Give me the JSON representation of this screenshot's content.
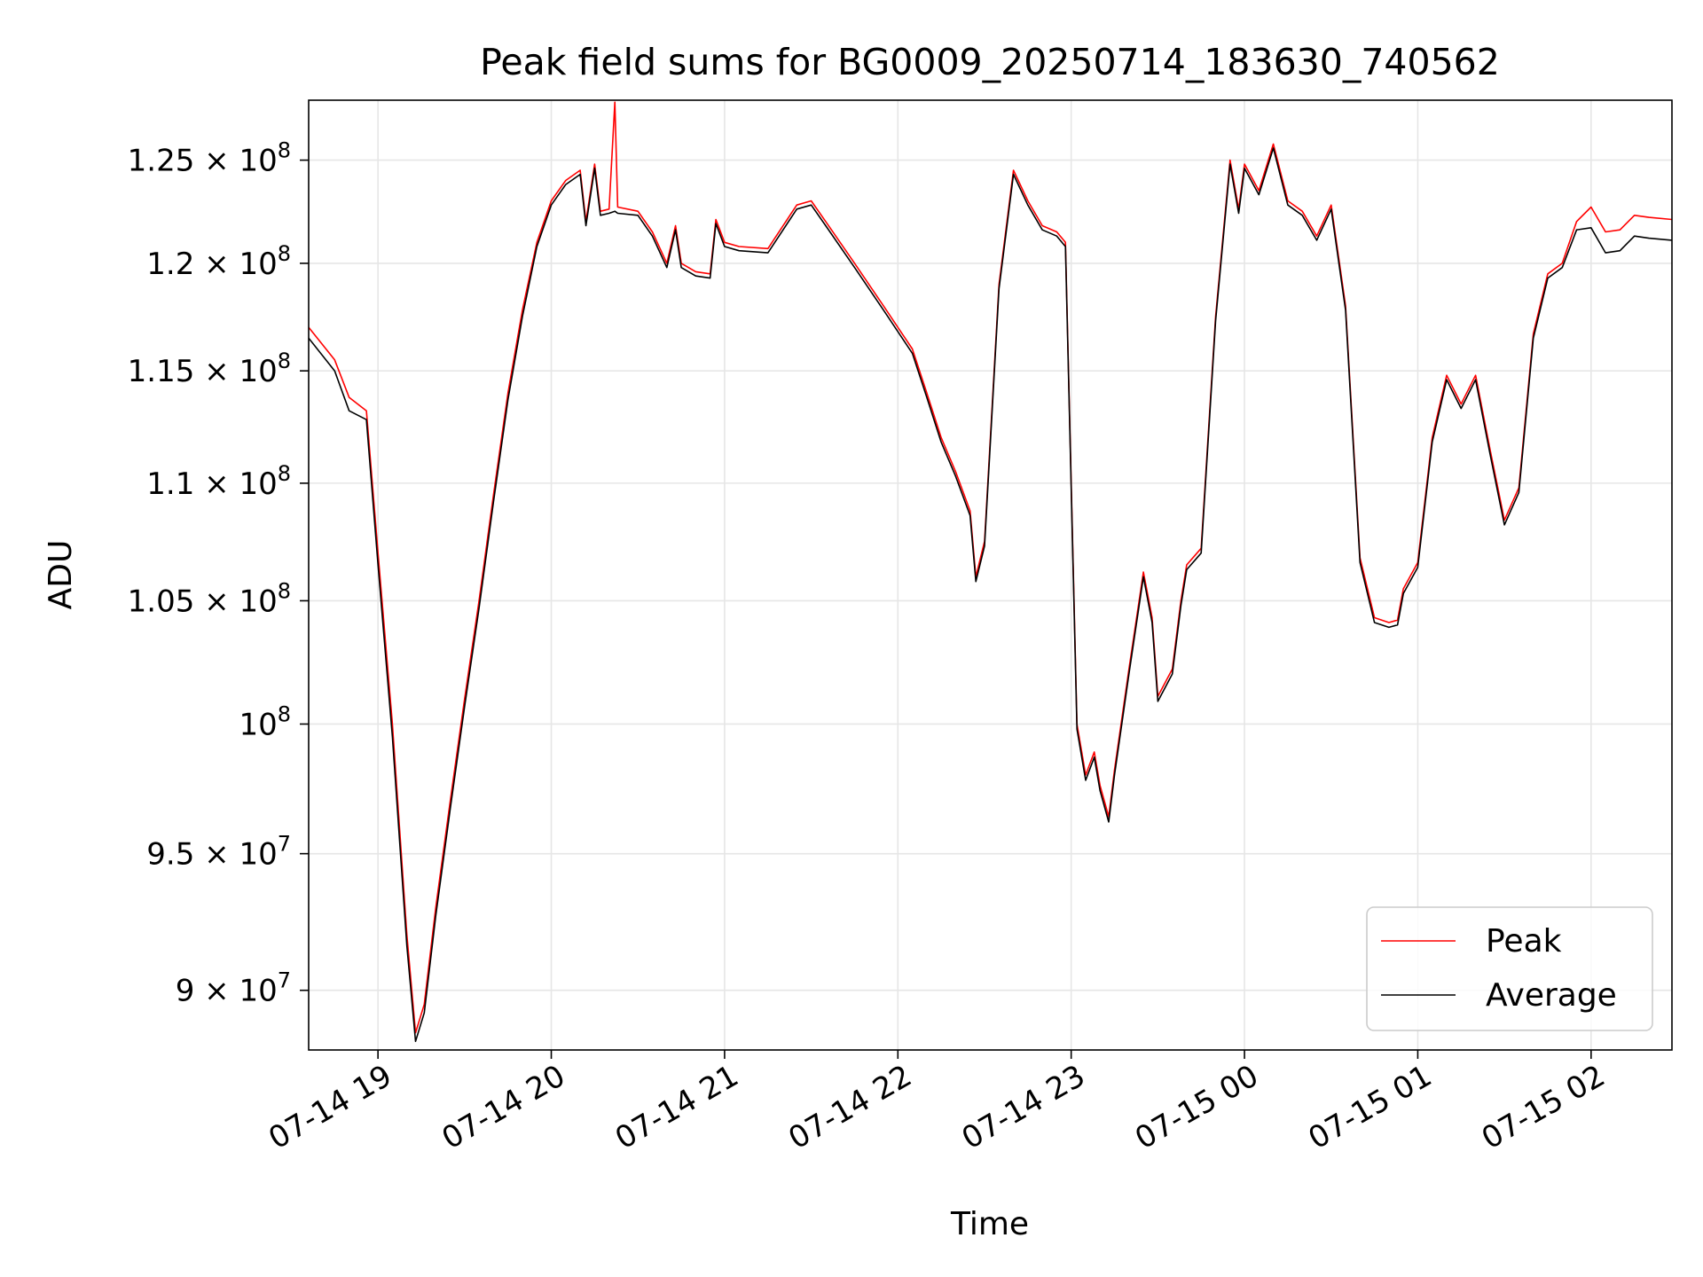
{
  "chart_data": {
    "type": "line",
    "title": "Peak field sums for BG0009_20250714_183630_740562",
    "xlabel": "Time",
    "ylabel": "ADU",
    "yscale": "log",
    "grid": true,
    "legend_position": "lower right",
    "ylim": [
      87900000,
      128000000
    ],
    "xlim": [
      "2025-07-14 18:36",
      "2025-07-15 02:28"
    ],
    "x_ticks": [
      {
        "value": "2025-07-14 19:00",
        "label": "07-14 19"
      },
      {
        "value": "2025-07-14 20:00",
        "label": "07-14 20"
      },
      {
        "value": "2025-07-14 21:00",
        "label": "07-14 21"
      },
      {
        "value": "2025-07-14 22:00",
        "label": "07-14 22"
      },
      {
        "value": "2025-07-14 23:00",
        "label": "07-14 23"
      },
      {
        "value": "2025-07-15 00:00",
        "label": "07-15 00"
      },
      {
        "value": "2025-07-15 01:00",
        "label": "07-15 01"
      },
      {
        "value": "2025-07-15 02:00",
        "label": "07-15 02"
      }
    ],
    "y_ticks": [
      {
        "value": 90000000,
        "mantissa": "9",
        "exponent": "7"
      },
      {
        "value": 95000000,
        "mantissa": "9.5",
        "exponent": "7"
      },
      {
        "value": 100000000,
        "mantissa": "",
        "exponent": "8"
      },
      {
        "value": 105000000,
        "mantissa": "1.05",
        "exponent": "8"
      },
      {
        "value": 110000000,
        "mantissa": "1.1",
        "exponent": "8"
      },
      {
        "value": 115000000,
        "mantissa": "1.15",
        "exponent": "8"
      },
      {
        "value": 120000000,
        "mantissa": "1.2",
        "exponent": "8"
      },
      {
        "value": 125000000,
        "mantissa": "1.25",
        "exponent": "8"
      }
    ],
    "x": [
      "2025-07-14 18:36",
      "2025-07-14 18:45",
      "2025-07-14 18:50",
      "2025-07-14 18:56",
      "2025-07-14 19:00",
      "2025-07-14 19:05",
      "2025-07-14 19:10",
      "2025-07-14 19:13",
      "2025-07-14 19:16",
      "2025-07-14 19:20",
      "2025-07-14 19:25",
      "2025-07-14 19:30",
      "2025-07-14 19:35",
      "2025-07-14 19:40",
      "2025-07-14 19:45",
      "2025-07-14 19:50",
      "2025-07-14 19:55",
      "2025-07-14 20:00",
      "2025-07-14 20:05",
      "2025-07-14 20:10",
      "2025-07-14 20:12",
      "2025-07-14 20:15",
      "2025-07-14 20:17",
      "2025-07-14 20:20",
      "2025-07-14 20:22",
      "2025-07-14 20:23",
      "2025-07-14 20:30",
      "2025-07-14 20:35",
      "2025-07-14 20:40",
      "2025-07-14 20:43",
      "2025-07-14 20:45",
      "2025-07-14 20:50",
      "2025-07-14 20:55",
      "2025-07-14 20:57",
      "2025-07-14 21:00",
      "2025-07-14 21:05",
      "2025-07-14 21:15",
      "2025-07-14 21:25",
      "2025-07-14 21:30",
      "2025-07-14 21:35",
      "2025-07-14 21:45",
      "2025-07-14 21:55",
      "2025-07-14 22:05",
      "2025-07-14 22:10",
      "2025-07-14 22:15",
      "2025-07-14 22:20",
      "2025-07-14 22:25",
      "2025-07-14 22:27",
      "2025-07-14 22:30",
      "2025-07-14 22:35",
      "2025-07-14 22:40",
      "2025-07-14 22:45",
      "2025-07-14 22:50",
      "2025-07-14 22:55",
      "2025-07-14 22:58",
      "2025-07-14 23:00",
      "2025-07-14 23:02",
      "2025-07-14 23:05",
      "2025-07-14 23:08",
      "2025-07-14 23:10",
      "2025-07-14 23:13",
      "2025-07-14 23:15",
      "2025-07-14 23:20",
      "2025-07-14 23:25",
      "2025-07-14 23:28",
      "2025-07-14 23:30",
      "2025-07-14 23:35",
      "2025-07-14 23:38",
      "2025-07-14 23:40",
      "2025-07-14 23:45",
      "2025-07-14 23:50",
      "2025-07-14 23:55",
      "2025-07-14 23:58",
      "2025-07-15 00:00",
      "2025-07-15 00:05",
      "2025-07-15 00:10",
      "2025-07-15 00:15",
      "2025-07-15 00:20",
      "2025-07-15 00:25",
      "2025-07-15 00:30",
      "2025-07-15 00:35",
      "2025-07-15 00:40",
      "2025-07-15 00:45",
      "2025-07-15 00:50",
      "2025-07-15 00:53",
      "2025-07-15 00:55",
      "2025-07-15 01:00",
      "2025-07-15 01:05",
      "2025-07-15 01:10",
      "2025-07-15 01:15",
      "2025-07-15 01:20",
      "2025-07-15 01:25",
      "2025-07-15 01:30",
      "2025-07-15 01:35",
      "2025-07-15 01:40",
      "2025-07-15 01:45",
      "2025-07-15 01:50",
      "2025-07-15 01:55",
      "2025-07-15 02:00",
      "2025-07-15 02:05",
      "2025-07-15 02:10",
      "2025-07-15 02:15",
      "2025-07-15 02:20",
      "2025-07-15 02:28"
    ],
    "series": [
      {
        "name": "Peak",
        "color": "#ff0000",
        "values": [
          117000000,
          115500000,
          113800000,
          113200000,
          107000000,
          100000000,
          92000000,
          88500000,
          89500000,
          93000000,
          97000000,
          101000000,
          105000000,
          109500000,
          114000000,
          117800000,
          121000000,
          123000000,
          124000000,
          124500000,
          122000000,
          124800000,
          122500000,
          122600000,
          127900000,
          122700000,
          122500000,
          121500000,
          120000000,
          121800000,
          120000000,
          119600000,
          119500000,
          122100000,
          121000000,
          120800000,
          120700000,
          122800000,
          123000000,
          122000000,
          120000000,
          118000000,
          116000000,
          114000000,
          112000000,
          110500000,
          108800000,
          106000000,
          107500000,
          119000000,
          124500000,
          123000000,
          121800000,
          121500000,
          121000000,
          110000000,
          100000000,
          98000000,
          98900000,
          97600000,
          96400000,
          98200000,
          102200000,
          106200000,
          104300000,
          101100000,
          102200000,
          105000000,
          106500000,
          107200000,
          117500000,
          125000000,
          122600000,
          124800000,
          123500000,
          125800000,
          123000000,
          122500000,
          121300000,
          122800000,
          118000000,
          106800000,
          104300000,
          104100000,
          104200000,
          105500000,
          106600000,
          112000000,
          114800000,
          113500000,
          114800000,
          111500000,
          108400000,
          109800000,
          116700000,
          119500000,
          120000000,
          122000000,
          122700000,
          121500000,
          121600000,
          122300000,
          122200000,
          122100000
        ]
      },
      {
        "name": "Average",
        "color": "#000000",
        "values": [
          116500000,
          115000000,
          113200000,
          112800000,
          106500000,
          99500000,
          91600000,
          88200000,
          89200000,
          92700000,
          96700000,
          100700000,
          104700000,
          109200000,
          113700000,
          117500000,
          120800000,
          122800000,
          123800000,
          124300000,
          121800000,
          124600000,
          122300000,
          122400000,
          122500000,
          122400000,
          122300000,
          121300000,
          119800000,
          121600000,
          119800000,
          119400000,
          119300000,
          121900000,
          120800000,
          120600000,
          120500000,
          122600000,
          122800000,
          121800000,
          119800000,
          117800000,
          115800000,
          113800000,
          111800000,
          110300000,
          108600000,
          105800000,
          107300000,
          118800000,
          124300000,
          122800000,
          121600000,
          121300000,
          120800000,
          109800000,
          99800000,
          97800000,
          98700000,
          97400000,
          96200000,
          98000000,
          102000000,
          106000000,
          104100000,
          100900000,
          102000000,
          104800000,
          106300000,
          107000000,
          117300000,
          124800000,
          122400000,
          124600000,
          123300000,
          125600000,
          122800000,
          122300000,
          121100000,
          122600000,
          117800000,
          106600000,
          104100000,
          103900000,
          104000000,
          105300000,
          106400000,
          111800000,
          114600000,
          113300000,
          114600000,
          111300000,
          108200000,
          109600000,
          116500000,
          119300000,
          119800000,
          121600000,
          121700000,
          120500000,
          120600000,
          121300000,
          121200000,
          121100000
        ]
      }
    ]
  }
}
